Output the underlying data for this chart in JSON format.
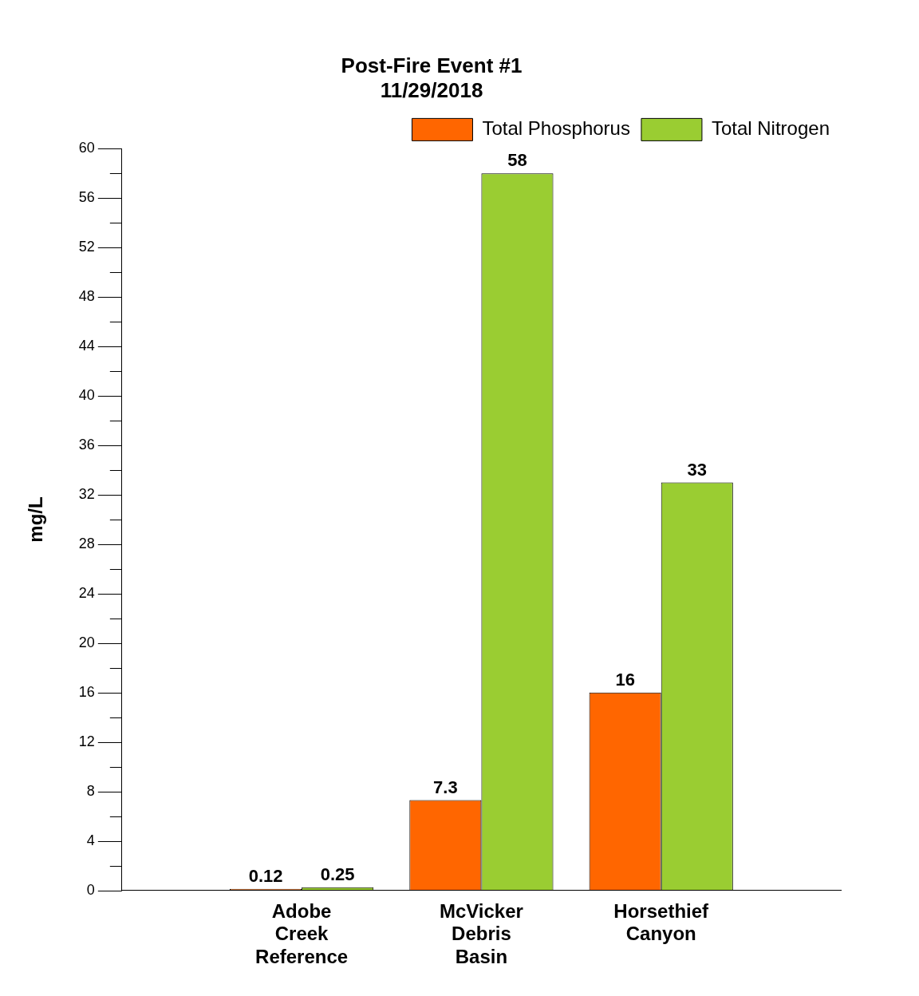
{
  "chart_data": {
    "type": "bar",
    "title": "Post-Fire Event #1\n11/29/2018",
    "ylabel": "mg/L",
    "categories": [
      "Adobe Creek Reference",
      "McVicker Debris Basin",
      "Horsethief Canyon"
    ],
    "series": [
      {
        "name": "Total Phosphorus",
        "color": "#ff6600",
        "values": [
          0.12,
          7.3,
          16
        ]
      },
      {
        "name": "Total Nitrogen",
        "color": "#9acd32",
        "values": [
          0.25,
          58,
          33
        ]
      }
    ],
    "ylim": [
      0,
      60
    ],
    "yticks": [
      0,
      {
        "value": 2,
        "label": null
      },
      4,
      {
        "value": 6,
        "label": null
      },
      8,
      {
        "value": 10,
        "label": null
      },
      12,
      {
        "value": 14,
        "label": null
      },
      16,
      {
        "value": 18,
        "label": null
      },
      20,
      {
        "value": 22,
        "label": null
      },
      24,
      {
        "value": 26,
        "label": null
      },
      28,
      {
        "value": 30,
        "label": null
      },
      32,
      {
        "value": 34,
        "label": null
      },
      36,
      {
        "value": 38,
        "label": null
      },
      40,
      {
        "value": 42,
        "label": null
      },
      44,
      {
        "value": 46,
        "label": null
      },
      48,
      {
        "value": 50,
        "label": null
      },
      52,
      {
        "value": 54,
        "label": null
      },
      56,
      {
        "value": 58,
        "label": null
      },
      60
    ],
    "grid": false,
    "legend": "top right",
    "data_labels": true
  }
}
